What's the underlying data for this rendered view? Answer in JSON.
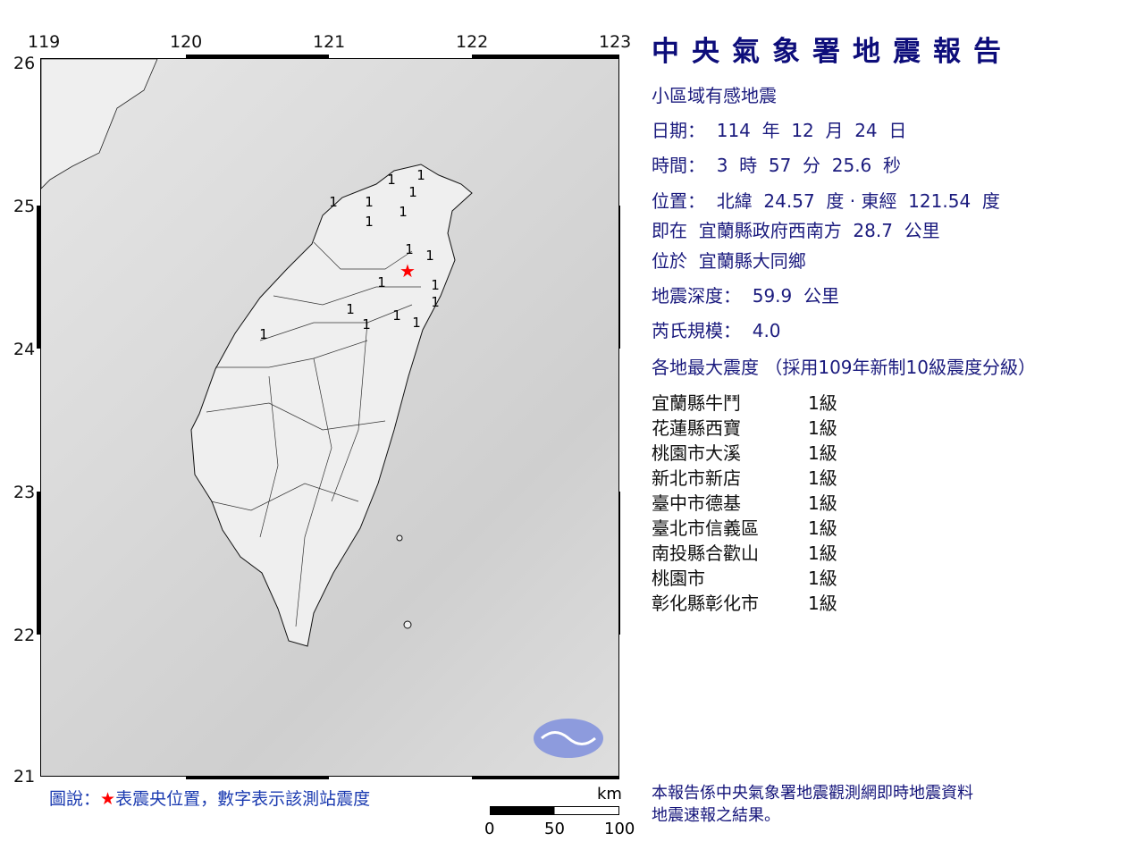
{
  "report": {
    "title": "中央氣象署地震報告",
    "type": "小區域有感地震",
    "date": "日期：  114  年  12  月  24  日",
    "time": "時間：  3  時  57  分  25.6  秒",
    "location": "位置：  北緯  24.57  度 · 東經  121.54  度",
    "relative": "即在  宜蘭縣政府西南方  28.7  公里",
    "area": "位於  宜蘭縣大同鄉",
    "depth": "地震深度：  59.9  公里",
    "magnitude": "芮氏規模：  4.0",
    "intensity_header": "各地最大震度 （採用109年新制10級震度分級）"
  },
  "stations": [
    {
      "name": "宜蘭縣牛鬥",
      "level": "1級"
    },
    {
      "name": "花蓮縣西寶",
      "level": "1級"
    },
    {
      "name": "桃園市大溪",
      "level": "1級"
    },
    {
      "name": "新北市新店",
      "level": "1級"
    },
    {
      "name": "臺中市德基",
      "level": "1級"
    },
    {
      "name": "臺北市信義區",
      "level": "1級"
    },
    {
      "name": "南投縣合歡山",
      "level": "1級"
    },
    {
      "name": "桃園市",
      "level": "1級"
    },
    {
      "name": "彰化縣彰化市",
      "level": "1級"
    }
  ],
  "footer_note": [
    "本報告係中央氣象署地震觀測網即時地震資料",
    "地震速報之結果。"
  ],
  "map": {
    "lon_ticks": [
      "119",
      "120",
      "121",
      "122",
      "123"
    ],
    "lat_ticks": [
      "26",
      "25",
      "24",
      "23",
      "22",
      "21"
    ],
    "epicenter": {
      "lat": 24.57,
      "lon": 121.54,
      "color": "#ff0000"
    },
    "station_marks": [
      "1",
      "1",
      "1",
      "1",
      "1",
      "1",
      "1",
      "1",
      "1",
      "1",
      "1",
      "1",
      "1",
      "1",
      "1",
      "1",
      "1"
    ],
    "legend": {
      "prefix": "圖說：",
      "star": "★",
      "text": "表震央位置，數字表示該測站震度"
    },
    "scale": {
      "unit": "km",
      "labels": [
        "0",
        "50",
        "100"
      ]
    }
  },
  "colors": {
    "title": "#0d0d7a",
    "text": "#1b1b7e",
    "epicenter": "#ff0000"
  }
}
